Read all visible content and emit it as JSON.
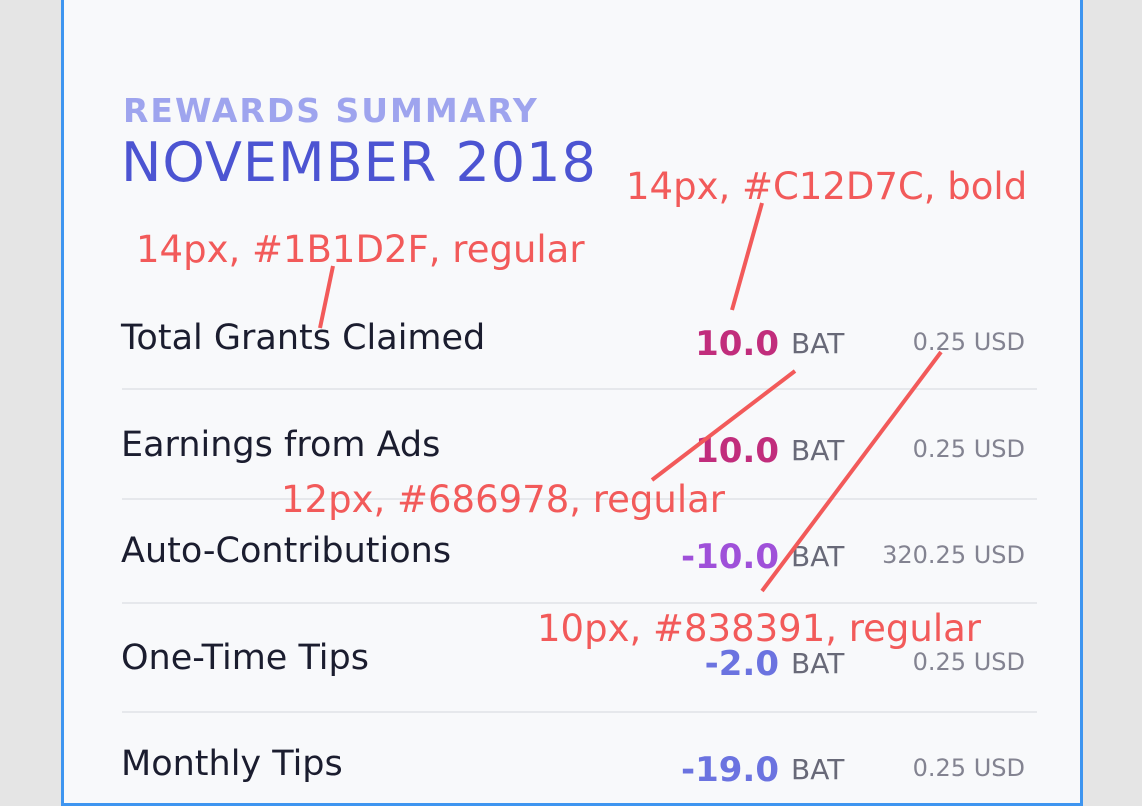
{
  "header": {
    "subtitle": "REWARDS SUMMARY",
    "title": "NOVEMBER 2018"
  },
  "rows": [
    {
      "label": "Total Grants Claimed",
      "amount": "10.0",
      "unit": "BAT",
      "usd": "0.25 USD",
      "color": "#C12D7C"
    },
    {
      "label": "Earnings from Ads",
      "amount": "10.0",
      "unit": "BAT",
      "usd": "0.25 USD",
      "color": "#C12D7C"
    },
    {
      "label": "Auto-Contributions",
      "amount": "-10.0",
      "unit": "BAT",
      "usd": "320.25 USD",
      "color": "#9F50D9"
    },
    {
      "label": "One-Time Tips",
      "amount": "-2.0",
      "unit": "BAT",
      "usd": "0.25 USD",
      "color": "#6B73E0"
    },
    {
      "label": "Monthly Tips",
      "amount": "-19.0",
      "unit": "BAT",
      "usd": "0.25 USD",
      "color": "#6B73E0"
    }
  ],
  "annotations": {
    "amount_spec": "14px, #C12D7C, bold",
    "label_spec": "14px, #1B1D2F, regular",
    "unit_spec": "12px, #686978, regular",
    "usd_spec": "10px, #838391, regular"
  },
  "colors": {
    "annotation": "#F25A5A",
    "panel_border": "#3E95F0"
  }
}
